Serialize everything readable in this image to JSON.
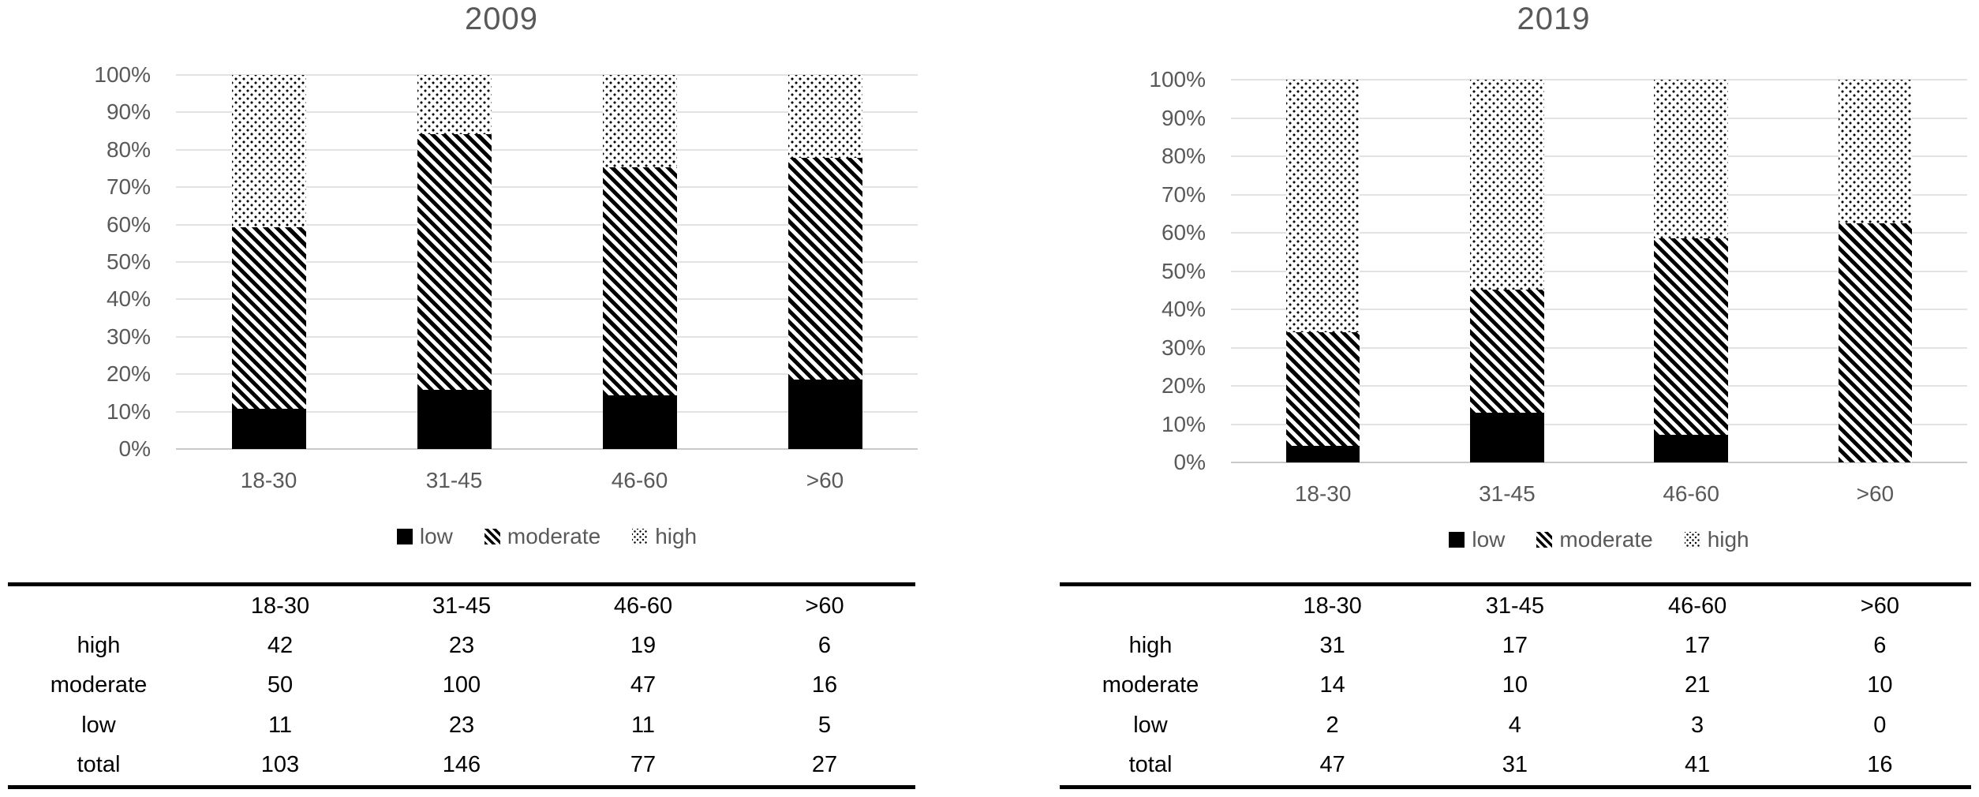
{
  "colors": {
    "title_text": "#595959",
    "axis_text": "#595959",
    "gridline": "#e2e2e2",
    "bar_fill": "#000000",
    "table_text": "#000000",
    "table_border": "#000000",
    "background": "#ffffff"
  },
  "legend": {
    "items": [
      {
        "key": "low",
        "label": "low",
        "pattern": "solid-black"
      },
      {
        "key": "moderate",
        "label": "moderate",
        "pattern": "diagonal-stripes"
      },
      {
        "key": "high",
        "label": "high",
        "pattern": "dots"
      }
    ],
    "position": "bottom"
  },
  "chart_data": [
    {
      "type": "bar",
      "stacked": true,
      "percent_stacked": true,
      "title": "2009",
      "categories": [
        "18-30",
        "31-45",
        "46-60",
        ">60"
      ],
      "series": [
        {
          "name": "low",
          "pattern": "solid-black",
          "values": [
            11,
            23,
            11,
            5
          ]
        },
        {
          "name": "moderate",
          "pattern": "diagonal-stripes",
          "values": [
            50,
            100,
            47,
            16
          ]
        },
        {
          "name": "high",
          "pattern": "dots",
          "values": [
            42,
            23,
            19,
            6
          ]
        }
      ],
      "totals": [
        103,
        146,
        77,
        27
      ],
      "percent_heights": {
        "low": [
          10.7,
          15.8,
          14.3,
          18.5
        ],
        "moderate": [
          48.5,
          68.5,
          61.0,
          59.3
        ],
        "high": [
          40.8,
          15.8,
          24.7,
          22.2
        ]
      },
      "ylim": [
        0,
        100
      ],
      "yticks": [
        "0%",
        "10%",
        "20%",
        "30%",
        "40%",
        "50%",
        "60%",
        "70%",
        "80%",
        "90%",
        "100%"
      ],
      "grid": true,
      "legend_position": "bottom"
    },
    {
      "type": "bar",
      "stacked": true,
      "percent_stacked": true,
      "title": "2019",
      "categories": [
        "18-30",
        "31-45",
        "46-60",
        ">60"
      ],
      "series": [
        {
          "name": "low",
          "pattern": "solid-black",
          "values": [
            2,
            4,
            3,
            0
          ]
        },
        {
          "name": "moderate",
          "pattern": "diagonal-stripes",
          "values": [
            14,
            10,
            21,
            10
          ]
        },
        {
          "name": "high",
          "pattern": "dots",
          "values": [
            31,
            17,
            17,
            6
          ]
        }
      ],
      "totals": [
        47,
        31,
        41,
        16
      ],
      "percent_heights": {
        "low": [
          4.3,
          12.9,
          7.3,
          0.0
        ],
        "moderate": [
          29.8,
          32.3,
          51.2,
          62.5
        ],
        "high": [
          66.0,
          54.8,
          41.5,
          37.5
        ]
      },
      "ylim": [
        0,
        100
      ],
      "yticks": [
        "0%",
        "10%",
        "20%",
        "30%",
        "40%",
        "50%",
        "60%",
        "70%",
        "80%",
        "90%",
        "100%"
      ],
      "grid": true,
      "legend_position": "bottom"
    }
  ],
  "tables": [
    {
      "columns": [
        "",
        "18-30",
        "31-45",
        "46-60",
        ">60"
      ],
      "rows": [
        {
          "label": "high",
          "values": [
            42,
            23,
            19,
            6
          ]
        },
        {
          "label": "moderate",
          "values": [
            50,
            100,
            47,
            16
          ]
        },
        {
          "label": "low",
          "values": [
            11,
            23,
            11,
            5
          ]
        },
        {
          "label": "total",
          "values": [
            103,
            146,
            77,
            27
          ]
        }
      ]
    },
    {
      "columns": [
        "",
        "18-30",
        "31-45",
        "46-60",
        ">60"
      ],
      "rows": [
        {
          "label": "high",
          "values": [
            31,
            17,
            17,
            6
          ]
        },
        {
          "label": "moderate",
          "values": [
            14,
            10,
            21,
            10
          ]
        },
        {
          "label": "low",
          "values": [
            2,
            4,
            3,
            0
          ]
        },
        {
          "label": "total",
          "values": [
            47,
            31,
            41,
            16
          ]
        }
      ]
    }
  ]
}
